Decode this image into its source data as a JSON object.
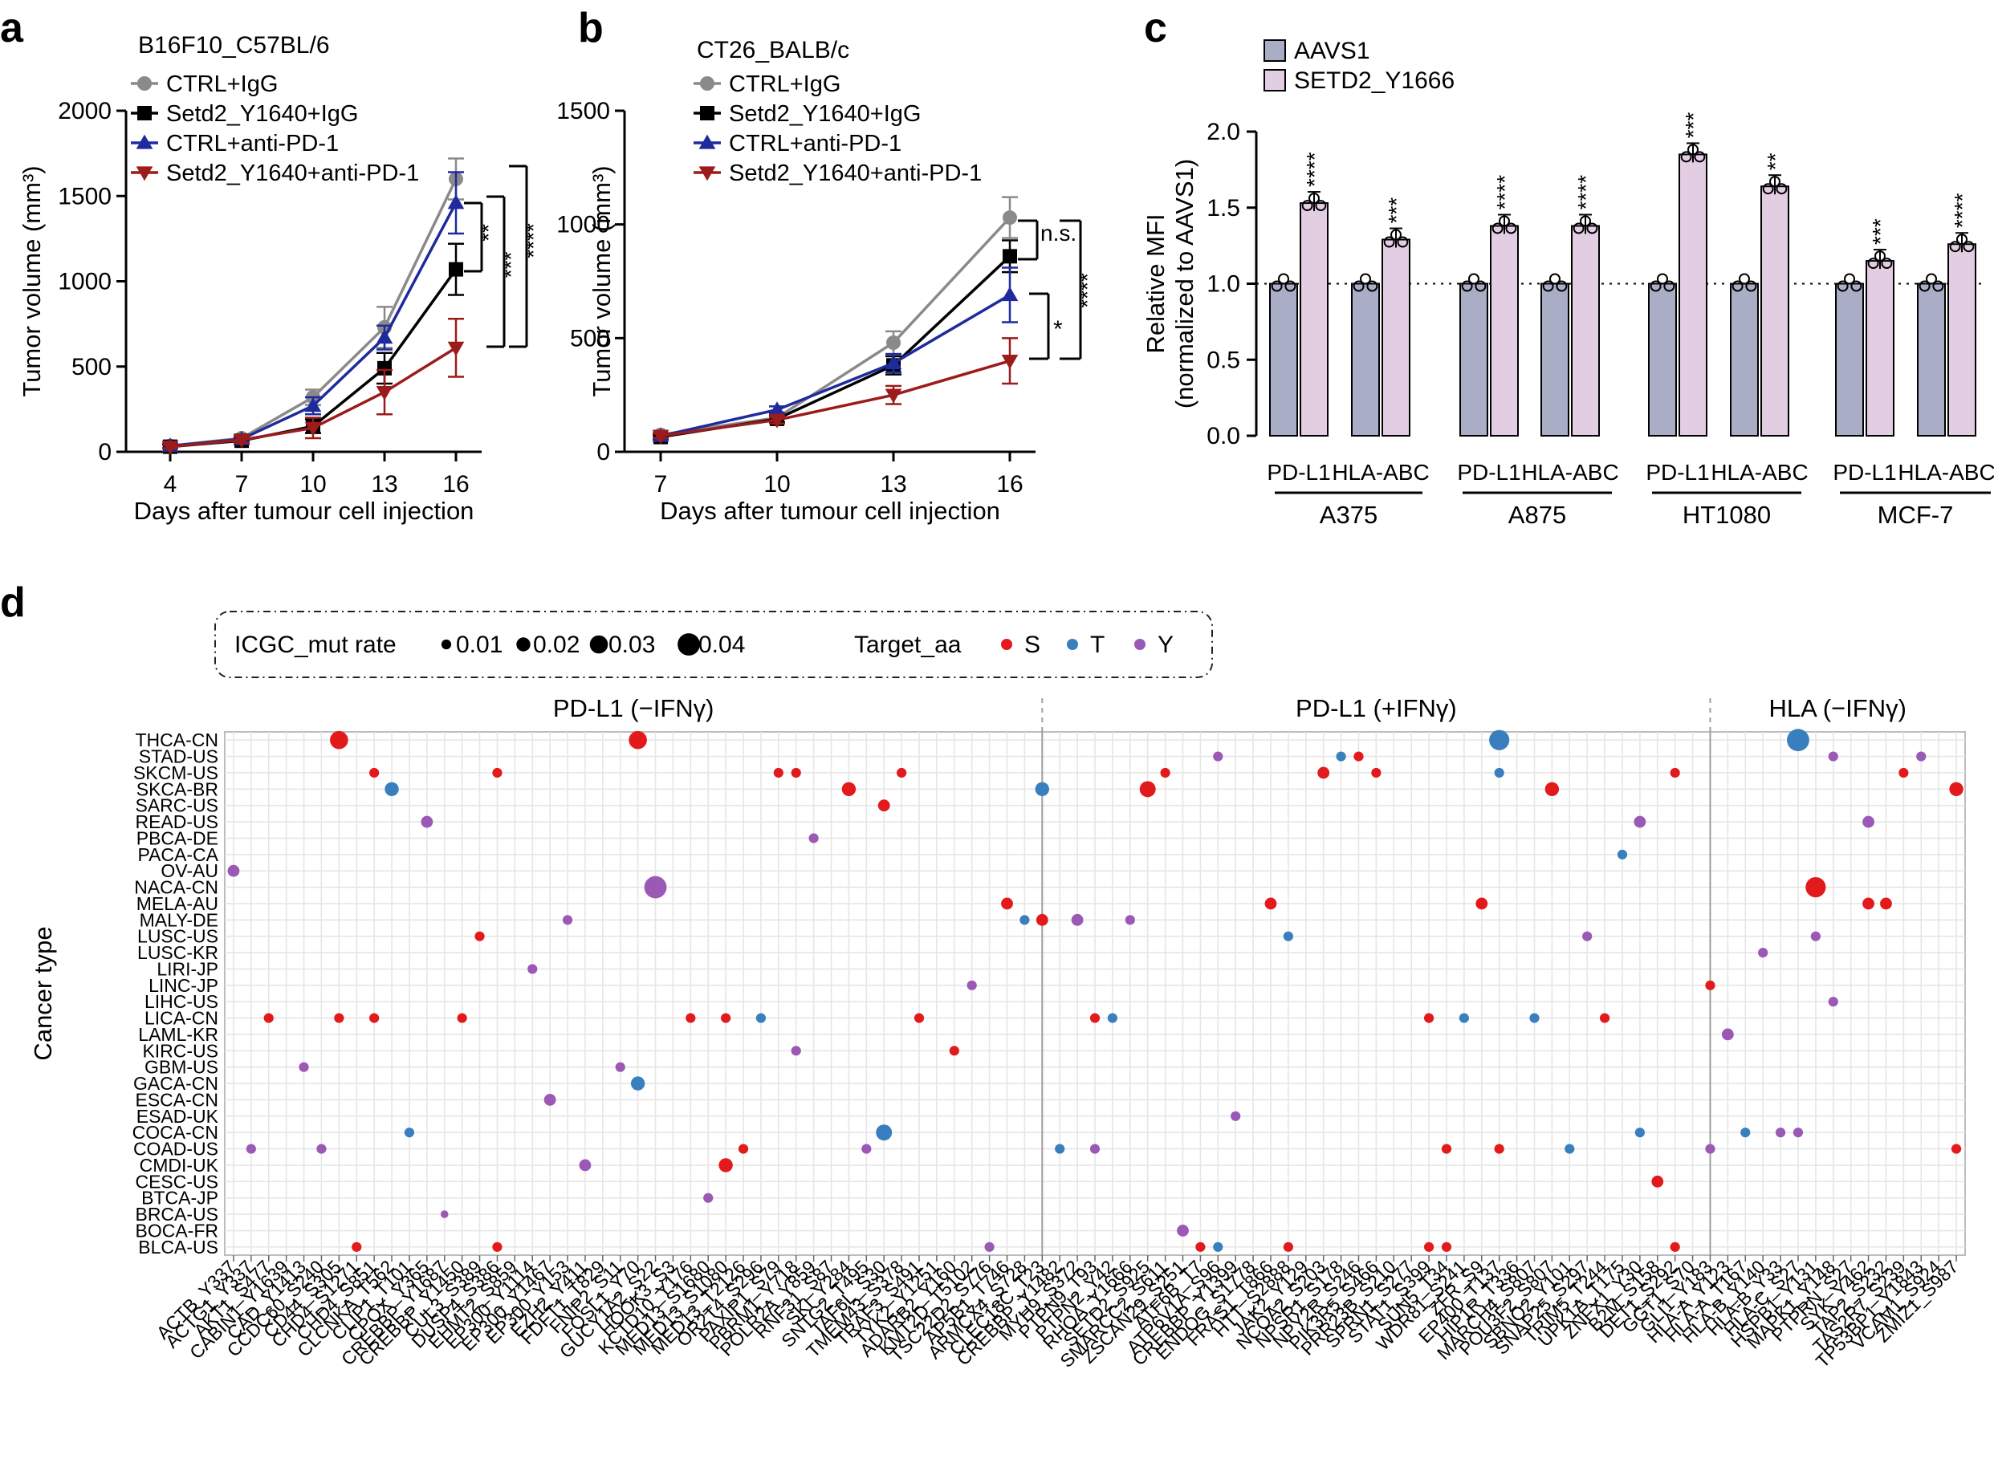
{
  "figure": {
    "panel_letters": [
      "a",
      "b",
      "c",
      "d"
    ]
  },
  "colors": {
    "ctrl_igg": "#8a8a8a",
    "setd2_igg": "#000000",
    "ctrl_pd1": "#1f2a9c",
    "setd2_pd1": "#9c1b1b",
    "aavs1": "#a9aec6",
    "setd2_y1666": "#e2cde3",
    "dot_S": "#e31a1c",
    "dot_T": "#3a7fbd",
    "dot_Y": "#9b59b6"
  },
  "chart_data": [
    {
      "id": "a",
      "type": "line",
      "title": "B16F10_C57BL/6",
      "xlabel": "Days after tumour cell injection",
      "ylabel": "Tumor volume (mm³)",
      "ylim": [
        0,
        2000
      ],
      "yticks": [
        "0",
        "500",
        "1000",
        "1500",
        "2000"
      ],
      "x": [
        4,
        7,
        10,
        13,
        16
      ],
      "series": [
        {
          "name": "CTRL+IgG",
          "marker": "circle",
          "values": [
            35,
            80,
            320,
            730,
            1600
          ],
          "err": [
            15,
            20,
            45,
            120,
            120
          ]
        },
        {
          "name": "Setd2_Y1640+IgG",
          "marker": "square",
          "values": [
            30,
            65,
            150,
            490,
            1070
          ],
          "err": [
            10,
            15,
            40,
            90,
            150
          ]
        },
        {
          "name": "CTRL+anti-PD-1",
          "marker": "triangle-up",
          "values": [
            35,
            75,
            270,
            670,
            1460
          ],
          "err": [
            12,
            18,
            50,
            70,
            180
          ]
        },
        {
          "name": "Setd2_Y1640+anti-PD-1",
          "marker": "triangle-down",
          "values": [
            30,
            70,
            140,
            350,
            610
          ],
          "err": [
            10,
            18,
            60,
            130,
            170
          ]
        }
      ],
      "significance": [
        "**",
        "***",
        "****"
      ]
    },
    {
      "id": "b",
      "type": "line",
      "title": "CT26_BALB/c",
      "xlabel": "Days after tumour cell injection",
      "ylabel": "Tumor volume (mm³)",
      "ylim": [
        0,
        1500
      ],
      "yticks": [
        "0",
        "500",
        "1000",
        "1500"
      ],
      "x": [
        7,
        10,
        13,
        16
      ],
      "series": [
        {
          "name": "CTRL+IgG",
          "marker": "circle",
          "values": [
            75,
            150,
            480,
            1030
          ],
          "err": [
            10,
            20,
            50,
            90
          ]
        },
        {
          "name": "Setd2_Y1640+IgG",
          "marker": "square",
          "values": [
            65,
            145,
            380,
            860
          ],
          "err": [
            10,
            15,
            40,
            70
          ]
        },
        {
          "name": "CTRL+anti-PD-1",
          "marker": "triangle-up",
          "values": [
            70,
            185,
            390,
            690
          ],
          "err": [
            10,
            15,
            40,
            120
          ]
        },
        {
          "name": "Setd2_Y1640+anti-PD-1",
          "marker": "triangle-down",
          "values": [
            70,
            140,
            250,
            400
          ],
          "err": [
            10,
            15,
            40,
            100
          ]
        }
      ],
      "significance": [
        "n.s.",
        "*",
        "****"
      ]
    },
    {
      "id": "c",
      "type": "bar",
      "ylabel": "Relative MFI",
      "ylabel2": "(normalized to AAVS1)",
      "ylim": [
        0,
        2.0
      ],
      "yticks": [
        "0.0",
        "0.5",
        "1.0",
        "1.5",
        "2.0"
      ],
      "legend": [
        "AAVS1",
        "SETD2_Y1666"
      ],
      "cell_lines": [
        "A375",
        "A875",
        "HT1080",
        "MCF-7"
      ],
      "markers": [
        "PD-L1",
        "HLA-ABC"
      ],
      "groups": [
        {
          "cell": "A375",
          "marker": "PD-L1",
          "aavs1": 1.0,
          "setd2": 1.53,
          "sig": "****"
        },
        {
          "cell": "A375",
          "marker": "HLA-ABC",
          "aavs1": 1.0,
          "setd2": 1.29,
          "sig": "***"
        },
        {
          "cell": "A875",
          "marker": "PD-L1",
          "aavs1": 1.0,
          "setd2": 1.38,
          "sig": "****"
        },
        {
          "cell": "A875",
          "marker": "HLA-ABC",
          "aavs1": 1.0,
          "setd2": 1.38,
          "sig": "****"
        },
        {
          "cell": "HT1080",
          "marker": "PD-L1",
          "aavs1": 1.0,
          "setd2": 1.85,
          "sig": "***"
        },
        {
          "cell": "HT1080",
          "marker": "HLA-ABC",
          "aavs1": 1.0,
          "setd2": 1.64,
          "sig": "**"
        },
        {
          "cell": "MCF-7",
          "marker": "PD-L1",
          "aavs1": 1.0,
          "setd2": 1.15,
          "sig": "***"
        },
        {
          "cell": "MCF-7",
          "marker": "HLA-ABC",
          "aavs1": 1.0,
          "setd2": 1.26,
          "sig": "****"
        }
      ],
      "ref_line": 1.0
    },
    {
      "id": "d",
      "type": "scatter",
      "ylabel": "Cancer type",
      "legend_size_title": "ICGC_mut rate",
      "legend_sizes": [
        "0.01",
        "0.02",
        "0.03",
        "0.04"
      ],
      "legend_color_title": "Target_aa",
      "legend_colors": [
        "S",
        "T",
        "Y"
      ],
      "facets": [
        "PD-L1 (−IFNγ)",
        "PD-L1 (+IFNγ)",
        "HLA (−IFNγ)"
      ],
      "facet_splits": [
        46.5,
        84.5
      ],
      "cancer_types": [
        "THCA-CN",
        "STAD-US",
        "SKCM-US",
        "SKCA-BR",
        "SARC-US",
        "READ-US",
        "PBCA-DE",
        "PACA-CA",
        "OV-AU",
        "NACA-CN",
        "MELA-AU",
        "MALY-DE",
        "LUSC-US",
        "LUSC-KR",
        "LIRI-JP",
        "LINC-JP",
        "LIHC-US",
        "LICA-CN",
        "LAML-KR",
        "KIRC-US",
        "GBM-US",
        "GACA-CN",
        "ESCA-CN",
        "ESAD-UK",
        "COCA-CN",
        "COAD-US",
        "CMDI-UK",
        "CESC-US",
        "BTCA-JP",
        "BRCA-US",
        "BOCA-FR",
        "BLCA-US"
      ],
      "genes": [
        "ACTB_Y337",
        "ACTG1_Y337",
        "AKT1_S477",
        "CABIN1_Y1639",
        "CAD_Y1413",
        "CCDC60_S240",
        "CD44_S305",
        "CHD4_S1271",
        "CHD4_S851",
        "CLCNKA_T562",
        "CLIP1_T101",
        "CPOX_Y365",
        "CREBBP_Y1687",
        "CREBBP_Y1450",
        "CUL3_S389",
        "DUSP4_S386",
        "EHMT2_S859",
        "EP300_Y1114",
        "EP300_Y1467",
        "EP300_Y153",
        "EZH2_Y411",
        "FDFT1_T829",
        "FNIP2_S11",
        "FOSL1_Y70",
        "GUCY1A2_S22",
        "HOOK3_S3",
        "KCTD10_Y176",
        "MED13_S1680",
        "MED13_S1080",
        "MED13_T2126",
        "OR2T4_S296",
        "PAXIP1_S79",
        "PBRM1_Y718",
        "POLR2A_Y859",
        "RNF31_S87",
        "SKI_Y284",
        "SNTG2_T495",
        "TAF6L_S30",
        "TMEM43_S378",
        "TRAF3_S491",
        "TYK2_Y1251",
        "ADARB2_Y160",
        "KMT2D_T5102",
        "TSC22D2_S776",
        "AP5B1_T746",
        "ARMCX4_S728",
        "CLEC18C_T23",
        "CREBBP_Y1482",
        "MYH9_S372",
        "PTPN9_T93",
        "PTPN2_Y42",
        "RHOA_Y1666",
        "SETD2_S925",
        "SMARCC2_S611",
        "ZSCAN29_S251",
        "ATF6B_T7",
        "ATP6V1A_S96",
        "CREBBP_Y1399",
        "ENDOG_S1778",
        "FRAS1_T866",
        "HTT_S2888",
        "JAK2_Y129",
        "NCOA2_S203",
        "NPSR1_S178",
        "NPY2R_S246",
        "PIK3R5_S466",
        "PRR23B_S210",
        "SPRN1_S277",
        "STAT1_S399",
        "SUN5_T34",
        "WDR81_S241",
        "ZFR_S9",
        "EP400_T137",
        "HIP1R_T336",
        "MARCH4_S807",
        "POU3F2_S807",
        "SBNO2_Y101",
        "SNAP25_S297",
        "TRIM5_T244",
        "UPK1A_T175",
        "ZNFX1_Y30",
        "B2M_S158",
        "DET1_S292",
        "GGT1_S70",
        "GLI1_Y183",
        "HLA-A_Y123",
        "HLA-A_T167",
        "HLA-B_Y140",
        "HLA-B_Y33",
        "HLA-C_S27",
        "HSPB1_Y131",
        "MAPK1_Y148",
        "PTPRN_S27",
        "SYK_Y462",
        "TAP2_S232",
        "TAS2R7_S239",
        "TP53BP1_Y1843",
        "VCAM1_S924",
        "ZMIZ1_S987"
      ],
      "points": [
        [
          "CD44_S305",
          "THCA-CN",
          "S",
          0.03
        ],
        [
          "FOSL1_Y70",
          "THCA-CN",
          "S",
          0.03
        ],
        [
          "EP400_T137",
          "THCA-CN",
          "T",
          0.035
        ],
        [
          "HLA-C_S27",
          "THCA-CN",
          "T",
          0.04
        ],
        [
          "ATP6V1A_S96",
          "STAD-US",
          "Y",
          0.01
        ],
        [
          "NPSR1_S178",
          "STAD-US",
          "T",
          0.01
        ],
        [
          "NPY2R_S246",
          "STAD-US",
          "S",
          0.01
        ],
        [
          "MAPK1_Y148",
          "STAD-US",
          "Y",
          0.01
        ],
        [
          "TP53BP1_Y1843",
          "STAD-US",
          "Y",
          0.01
        ],
        [
          "CHD4_S851",
          "SKCM-US",
          "S",
          0.01
        ],
        [
          "DUSP4_S386",
          "SKCM-US",
          "S",
          0.01
        ],
        [
          "PAXIP1_S79",
          "SKCM-US",
          "S",
          0.01
        ],
        [
          "PBRM1_Y718",
          "SKCM-US",
          "S",
          0.01
        ],
        [
          "TMEM43_S378",
          "SKCM-US",
          "S",
          0.01
        ],
        [
          "SMARCC2_S611",
          "SKCM-US",
          "S",
          0.01
        ],
        [
          "NCOA2_S203",
          "SKCM-US",
          "S",
          0.015
        ],
        [
          "PIK3R5_S466",
          "SKCM-US",
          "S",
          0.01
        ],
        [
          "EP400_T137",
          "SKCM-US",
          "T",
          0.01
        ],
        [
          "DET1_S292",
          "SKCM-US",
          "S",
          0.01
        ],
        [
          "TAS2R7_S239",
          "SKCM-US",
          "S",
          0.01
        ],
        [
          "CLCNKA_T562",
          "SKCA-BR",
          "T",
          0.02
        ],
        [
          "SKI_Y284",
          "SKCA-BR",
          "S",
          0.02
        ],
        [
          "CLEC18C_T23",
          "SKCA-BR",
          "T",
          0.02
        ],
        [
          "SETD2_S925",
          "SKCA-BR",
          "S",
          0.025
        ],
        [
          "POU3F2_S807",
          "SKCA-BR",
          "S",
          0.02
        ],
        [
          "ZMIZ1_S987",
          "SKCA-BR",
          "S",
          0.02
        ],
        [
          "TAF6L_S30",
          "SARC-US",
          "S",
          0.015
        ],
        [
          "CPOX_Y365",
          "READ-US",
          "Y",
          0.015
        ],
        [
          "ZNFX1_Y30",
          "READ-US",
          "Y",
          0.015
        ],
        [
          "SYK_Y462",
          "READ-US",
          "Y",
          0.015
        ],
        [
          "POLR2A_Y859",
          "PBCA-DE",
          "Y",
          0.01
        ],
        [
          "UPK1A_T175",
          "PACA-CA",
          "T",
          0.01
        ],
        [
          "ACTB_Y337",
          "OV-AU",
          "Y",
          0.015
        ],
        [
          "GUCY1A2_S22",
          "NACA-CN",
          "Y",
          0.04
        ],
        [
          "HSPB1_Y131",
          "NACA-CN",
          "S",
          0.035
        ],
        [
          "AP5B1_T746",
          "MELA-AU",
          "S",
          0.015
        ],
        [
          "FRAS1_T866",
          "MELA-AU",
          "S",
          0.015
        ],
        [
          "ZFR_S9",
          "MELA-AU",
          "S",
          0.015
        ],
        [
          "SYK_Y462",
          "MELA-AU",
          "S",
          0.015
        ],
        [
          "TAP2_S232",
          "MELA-AU",
          "S",
          0.015
        ],
        [
          "EP300_Y153",
          "MALY-DE",
          "Y",
          0.01
        ],
        [
          "ARMCX4_S728",
          "MALY-DE",
          "T",
          0.01
        ],
        [
          "CLEC18C_T23",
          "MALY-DE",
          "S",
          0.015
        ],
        [
          "MYH9_S372",
          "MALY-DE",
          "Y",
          0.015
        ],
        [
          "RHOA_Y1666",
          "MALY-DE",
          "Y",
          0.01
        ],
        [
          "CUL3_S389",
          "LUSC-US",
          "S",
          0.01
        ],
        [
          "HTT_S2888",
          "LUSC-US",
          "T",
          0.01
        ],
        [
          "SNAP25_S297",
          "LUSC-US",
          "Y",
          0.01
        ],
        [
          "HSPB1_Y131",
          "LUSC-US",
          "Y",
          0.01
        ],
        [
          "HLA-B_Y140",
          "LUSC-KR",
          "Y",
          0.01
        ],
        [
          "EP300_Y1114",
          "LIRI-JP",
          "Y",
          0.01
        ],
        [
          "KMT2D_T5102",
          "LINC-JP",
          "Y",
          0.01
        ],
        [
          "GLI1_Y183",
          "LINC-JP",
          "S",
          0.01
        ],
        [
          "MAPK1_Y148",
          "LIHC-US",
          "Y",
          0.01
        ],
        [
          "AKT1_S477",
          "LICA-CN",
          "S",
          0.01
        ],
        [
          "CD44_S305",
          "LICA-CN",
          "S",
          0.01
        ],
        [
          "CHD4_S851",
          "LICA-CN",
          "S",
          0.01
        ],
        [
          "CREBBP_Y1450",
          "LICA-CN",
          "S",
          0.01
        ],
        [
          "KCTD10_Y176",
          "LICA-CN",
          "S",
          0.01
        ],
        [
          "MED13_S1080",
          "LICA-CN",
          "S",
          0.01
        ],
        [
          "OR2T4_S296",
          "LICA-CN",
          "T",
          0.01
        ],
        [
          "TRAF3_S491",
          "LICA-CN",
          "S",
          0.01
        ],
        [
          "PTPN9_T93",
          "LICA-CN",
          "S",
          0.01
        ],
        [
          "PTPN2_Y42",
          "LICA-CN",
          "T",
          0.01
        ],
        [
          "STAT1_S399",
          "LICA-CN",
          "S",
          0.01
        ],
        [
          "WDR81_S241",
          "LICA-CN",
          "T",
          0.01
        ],
        [
          "MARCH4_S807",
          "LICA-CN",
          "T",
          0.01
        ],
        [
          "TRIM5_T244",
          "LICA-CN",
          "S",
          0.01
        ],
        [
          "HLA-A_Y123",
          "LAML-KR",
          "Y",
          0.015
        ],
        [
          "PBRM1_Y718",
          "KIRC-US",
          "Y",
          0.01
        ],
        [
          "ADARB2_Y160",
          "KIRC-US",
          "S",
          0.01
        ],
        [
          "CAD_Y1413",
          "GBM-US",
          "Y",
          0.01
        ],
        [
          "FNIP2_S11",
          "GBM-US",
          "Y",
          0.01
        ],
        [
          "FOSL1_Y70",
          "GACA-CN",
          "T",
          0.02
        ],
        [
          "EP300_Y1467",
          "ESCA-CN",
          "Y",
          0.015
        ],
        [
          "CREBBP_Y1399",
          "ESAD-UK",
          "Y",
          0.01
        ],
        [
          "CLIP1_T101",
          "COCA-CN",
          "T",
          0.01
        ],
        [
          "TAF6L_S30",
          "COCA-CN",
          "T",
          0.025
        ],
        [
          "ZNFX1_Y30",
          "COCA-CN",
          "T",
          0.01
        ],
        [
          "HLA-A_T167",
          "COCA-CN",
          "T",
          0.01
        ],
        [
          "HLA-B_Y33",
          "COCA-CN",
          "Y",
          0.01
        ],
        [
          "HLA-C_S27",
          "COCA-CN",
          "Y",
          0.01
        ],
        [
          "ACTG1_Y337",
          "COAD-US",
          "Y",
          0.01
        ],
        [
          "CCDC60_S240",
          "COAD-US",
          "Y",
          0.01
        ],
        [
          "MED13_T2126",
          "COAD-US",
          "S",
          0.01
        ],
        [
          "SNTG2_T495",
          "COAD-US",
          "Y",
          0.01
        ],
        [
          "CREBBP_Y1482",
          "COAD-US",
          "T",
          0.01
        ],
        [
          "PTPN9_T93",
          "COAD-US",
          "Y",
          0.01
        ],
        [
          "SUN5_T34",
          "COAD-US",
          "S",
          0.01
        ],
        [
          "EP400_T137",
          "COAD-US",
          "S",
          0.01
        ],
        [
          "SBNO2_Y101",
          "COAD-US",
          "T",
          0.01
        ],
        [
          "GLI1_Y183",
          "COAD-US",
          "Y",
          0.01
        ],
        [
          "ZMIZ1_S987",
          "COAD-US",
          "S",
          0.01
        ],
        [
          "EZH2_Y411",
          "CMDI-UK",
          "Y",
          0.015
        ],
        [
          "MED13_S1080",
          "CMDI-UK",
          "S",
          0.02
        ],
        [
          "B2M_S158",
          "CESC-US",
          "S",
          0.015
        ],
        [
          "MED13_S1680",
          "BTCA-JP",
          "Y",
          0.01
        ],
        [
          "CREBBP_Y1687",
          "BRCA-US",
          "Y",
          0.005
        ],
        [
          "ZSCAN29_S251",
          "BOCA-FR",
          "Y",
          0.015
        ],
        [
          "CHD4_S1271",
          "BLCA-US",
          "S",
          0.01
        ],
        [
          "DUSP4_S386",
          "BLCA-US",
          "S",
          0.01
        ],
        [
          "TSC22D2_S776",
          "BLCA-US",
          "Y",
          0.01
        ],
        [
          "ATF6B_T7",
          "BLCA-US",
          "S",
          0.01
        ],
        [
          "ATP6V1A_S96",
          "BLCA-US",
          "T",
          0.01
        ],
        [
          "HTT_S2888",
          "BLCA-US",
          "S",
          0.01
        ],
        [
          "STAT1_S399",
          "BLCA-US",
          "S",
          0.01
        ],
        [
          "SUN5_T34",
          "BLCA-US",
          "S",
          0.01
        ],
        [
          "DET1_S292",
          "BLCA-US",
          "S",
          0.01
        ]
      ]
    }
  ]
}
